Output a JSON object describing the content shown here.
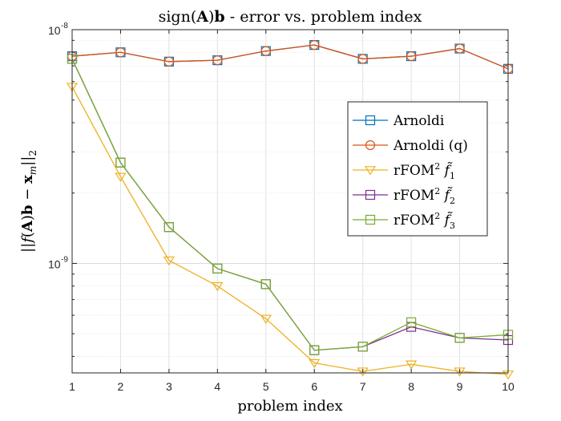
{
  "chart_data": {
    "type": "line",
    "title": "sign(A)b - error vs. problem index",
    "xlabel": "problem index",
    "ylabel": "||f(A)b - x_m||_2",
    "x": [
      1,
      2,
      3,
      4,
      5,
      6,
      7,
      8,
      9,
      10
    ],
    "xlim": [
      1,
      10
    ],
    "ylim": [
      3.4e-10,
      1e-08
    ],
    "y_scale": "log",
    "grid": true,
    "y_tick_labels": [
      {
        "base": "10",
        "exp": "-8",
        "value": 1e-08
      },
      {
        "base": "10",
        "exp": "-9",
        "value": 1e-09
      }
    ],
    "legend_position": "upper-right",
    "series": [
      {
        "name": "Arnoldi",
        "name_sup": "",
        "name_tail": "",
        "color": "#0072BD",
        "marker": "square",
        "values": [
          7.7e-09,
          8e-09,
          7.3e-09,
          7.4e-09,
          8.1e-09,
          8.6e-09,
          7.5e-09,
          7.7e-09,
          8.3e-09,
          6.8e-09
        ]
      },
      {
        "name": "Arnoldi (q)",
        "name_sup": "",
        "name_tail": "",
        "color": "#D95319",
        "marker": "circle",
        "values": [
          7.7e-09,
          8e-09,
          7.3e-09,
          7.4e-09,
          8.1e-09,
          8.6e-09,
          7.5e-09,
          7.7e-09,
          8.3e-09,
          6.8e-09
        ]
      },
      {
        "name": "rFOM",
        "name_sup": "2",
        "name_tail": "1",
        "color": "#EDB120",
        "marker": "triangle-down",
        "values": [
          5.7e-09,
          2.35e-09,
          1.03e-09,
          8e-10,
          5.8e-10,
          3.75e-10,
          3.45e-10,
          3.7e-10,
          3.45e-10,
          3.35e-10
        ]
      },
      {
        "name": "rFOM",
        "name_sup": "2",
        "name_tail": "2",
        "color": "#7E2F8E",
        "marker": "square",
        "values": [
          7.5e-09,
          2.7e-09,
          1.43e-09,
          9.5e-10,
          8.15e-10,
          4.25e-10,
          4.4e-10,
          5.35e-10,
          4.8e-10,
          4.7e-10
        ]
      },
      {
        "name": "rFOM",
        "name_sup": "2",
        "name_tail": "3",
        "color": "#77AC30",
        "marker": "square",
        "values": [
          7.5e-09,
          2.7e-09,
          1.43e-09,
          9.5e-10,
          8.15e-10,
          4.25e-10,
          4.4e-10,
          5.6e-10,
          4.8e-10,
          4.95e-10
        ]
      }
    ]
  }
}
